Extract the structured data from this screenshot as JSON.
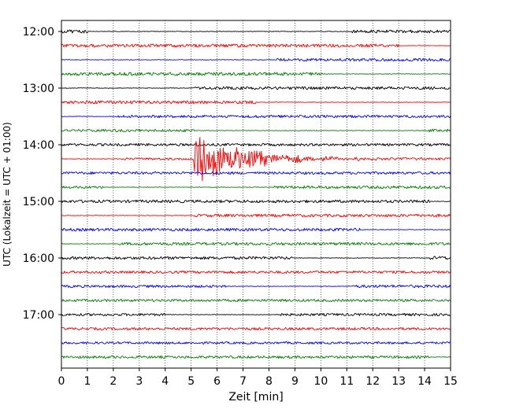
{
  "chart_data": {
    "type": "line",
    "title": "",
    "xlabel": "Zeit  [min]",
    "ylabel": "UTC (Lokalzeit = UTC + 01:00)",
    "xlim": [
      0,
      15
    ],
    "x_ticks": [
      "0",
      "1",
      "2",
      "3",
      "4",
      "5",
      "6",
      "7",
      "8",
      "9",
      "10",
      "11",
      "12",
      "13",
      "14",
      "15"
    ],
    "y_ticks": [
      "12:00",
      "13:00",
      "14:00",
      "15:00",
      "16:00",
      "17:00"
    ],
    "minutes_per_trace": 15,
    "grid": "vertical dotted",
    "colors_cycle": [
      "#000000",
      "#ff0000",
      "#0000ff",
      "#008000"
    ],
    "traces": [
      {
        "start": "12:00",
        "color": "#000000",
        "noise": [
          [
            0,
            1,
            2.2
          ],
          [
            11.2,
            15,
            2.0
          ]
        ]
      },
      {
        "start": "12:15",
        "color": "#ff0000",
        "noise": [
          [
            0,
            13,
            2.0
          ]
        ]
      },
      {
        "start": "12:30",
        "color": "#0000ff",
        "noise": [
          [
            8.3,
            15,
            1.8
          ]
        ]
      },
      {
        "start": "12:45",
        "color": "#008000",
        "noise": [
          [
            0,
            10.1,
            2.1
          ]
        ]
      },
      {
        "start": "13:00",
        "color": "#000000",
        "noise": [
          [
            5.1,
            15,
            1.8
          ]
        ]
      },
      {
        "start": "13:15",
        "color": "#ff0000",
        "noise": [
          [
            0,
            7.5,
            2.0
          ]
        ]
      },
      {
        "start": "13:30",
        "color": "#0000ff",
        "noise": [
          [
            2.1,
            15,
            1.6
          ]
        ]
      },
      {
        "start": "13:45",
        "color": "#008000",
        "noise": [
          [
            0,
            5.1,
            1.6
          ],
          [
            14.1,
            15,
            1.8
          ]
        ]
      },
      {
        "start": "14:00",
        "color": "#000000",
        "noise": [
          [
            0,
            15,
            1.6
          ]
        ]
      },
      {
        "start": "14:15",
        "color": "#ff0000",
        "noise": [
          [
            2.3,
            15,
            1.4
          ]
        ],
        "quake": {
          "at": 5.05,
          "peak": 28,
          "decay": 2.0
        }
      },
      {
        "start": "14:30",
        "color": "#0000ff",
        "noise": [
          [
            0,
            15,
            1.6
          ]
        ]
      },
      {
        "start": "14:45",
        "color": "#008000",
        "noise": [
          [
            0,
            1.6,
            1.6
          ],
          [
            8.2,
            15,
            1.8
          ]
        ]
      },
      {
        "start": "15:00",
        "color": "#000000",
        "noise": [
          [
            0,
            14.2,
            1.8
          ]
        ]
      },
      {
        "start": "15:15",
        "color": "#ff0000",
        "noise": [
          [
            5.1,
            15,
            1.8
          ]
        ]
      },
      {
        "start": "15:30",
        "color": "#0000ff",
        "noise": [
          [
            0,
            11.5,
            1.8
          ]
        ]
      },
      {
        "start": "15:45",
        "color": "#008000",
        "noise": [
          [
            2.2,
            15,
            1.8
          ]
        ]
      },
      {
        "start": "16:00",
        "color": "#000000",
        "noise": [
          [
            0,
            8.9,
            1.8
          ],
          [
            14.2,
            15,
            2.2
          ]
        ]
      },
      {
        "start": "16:15",
        "color": "#ff0000",
        "noise": [
          [
            0,
            15,
            1.6
          ]
        ]
      },
      {
        "start": "16:30",
        "color": "#0000ff",
        "noise": [
          [
            0,
            6.4,
            1.6
          ],
          [
            11.2,
            15,
            1.8
          ]
        ]
      },
      {
        "start": "16:45",
        "color": "#008000",
        "noise": [
          [
            0,
            15,
            1.6
          ]
        ]
      },
      {
        "start": "17:00",
        "color": "#000000",
        "noise": [
          [
            0,
            4.0,
            1.6
          ],
          [
            8.2,
            15,
            1.6
          ]
        ]
      },
      {
        "start": "17:15",
        "color": "#ff0000",
        "noise": [
          [
            0,
            15,
            1.6
          ]
        ]
      },
      {
        "start": "17:30",
        "color": "#0000ff",
        "noise": [
          [
            0,
            15,
            1.4
          ]
        ]
      },
      {
        "start": "17:45",
        "color": "#008000",
        "noise": [
          [
            0,
            14.2,
            1.6
          ]
        ]
      }
    ]
  }
}
